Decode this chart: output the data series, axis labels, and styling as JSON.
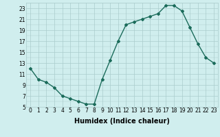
{
  "xlabel": "Humidex (Indice chaleur)",
  "x_values": [
    0,
    1,
    2,
    3,
    4,
    5,
    6,
    7,
    8,
    9,
    10,
    11,
    12,
    13,
    14,
    15,
    16,
    17,
    18,
    19,
    20,
    21,
    22,
    23
  ],
  "y_values": [
    12,
    10,
    9.5,
    8.5,
    7,
    6.5,
    6,
    5.5,
    5.5,
    10,
    13.5,
    17,
    20,
    20.5,
    21,
    21.5,
    22,
    23.5,
    23.5,
    22.5,
    19.5,
    16.5,
    14,
    13
  ],
  "line_color": "#1a6b5a",
  "bg_color": "#d0eeee",
  "grid_color": "#aacccc",
  "ylim": [
    5,
    24
  ],
  "yticks": [
    5,
    7,
    9,
    11,
    13,
    15,
    17,
    19,
    21,
    23
  ],
  "xticks": [
    0,
    1,
    2,
    3,
    4,
    5,
    6,
    7,
    8,
    9,
    10,
    11,
    12,
    13,
    14,
    15,
    16,
    17,
    18,
    19,
    20,
    21,
    22,
    23
  ],
  "marker": "D",
  "markersize": 2.0,
  "linewidth": 1.0,
  "xlabel_fontsize": 7,
  "tick_fontsize": 5.5
}
